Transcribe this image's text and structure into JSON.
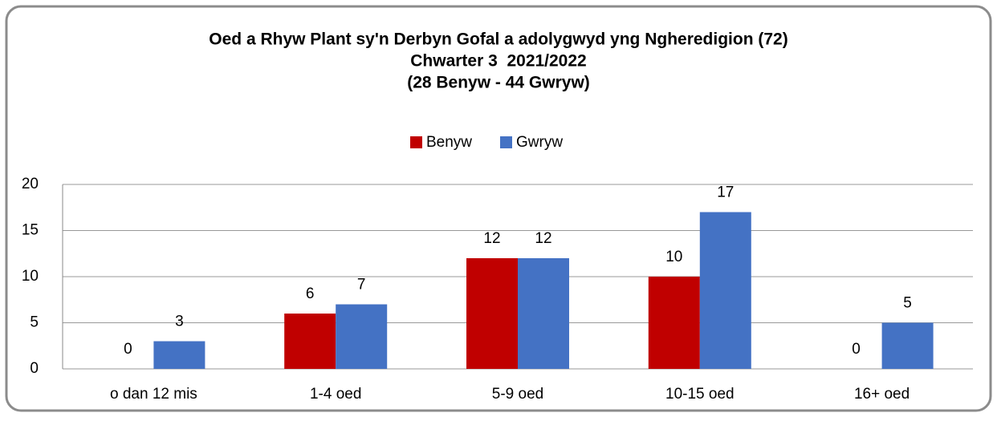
{
  "chart_data": {
    "type": "bar",
    "title": "Oed a Rhyw Plant sy'n Derbyn Gofal a adolygwyd yng Ngheredigion (72)",
    "subtitle": [
      "Chwarter 3  2021/2022",
      "(28 Benyw - 44 Gwryw)"
    ],
    "categories": [
      "o dan 12 mis",
      "1-4 oed",
      "5-9 oed",
      "10-15 oed",
      "16+ oed"
    ],
    "series": [
      {
        "name": "Benyw",
        "color": "#c00000",
        "values": [
          0,
          6,
          12,
          10,
          0
        ]
      },
      {
        "name": "Gwryw",
        "color": "#4472c4",
        "values": [
          3,
          7,
          12,
          17,
          5
        ]
      }
    ],
    "ylim": [
      0,
      20
    ],
    "yticks": [
      0,
      5,
      10,
      15,
      20
    ],
    "grid": true,
    "legend": "top"
  }
}
